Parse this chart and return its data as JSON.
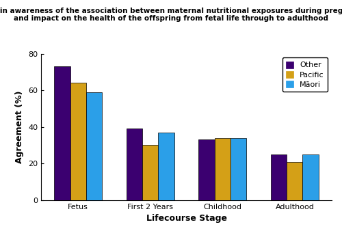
{
  "title_line1": "Trend in awareness of the association between maternal nutritional exposures during pregnancy",
  "title_line2": "and impact on the health of the offspring from fetal life through to adulthood",
  "xlabel": "Lifecourse Stage",
  "ylabel": "Agreement (%)",
  "categories": [
    "Fetus",
    "First 2 Years",
    "Childhood",
    "Adulthood"
  ],
  "series": {
    "Other": [
      73,
      39,
      33,
      25
    ],
    "Pacific": [
      64,
      30,
      34,
      21
    ],
    "Māori": [
      59,
      37,
      34,
      25
    ]
  },
  "colors": {
    "Other": "#3B0070",
    "Pacific": "#D4A017",
    "Māori": "#2B9FE8"
  },
  "ylim": [
    0,
    80
  ],
  "yticks": [
    0,
    20,
    40,
    60,
    80
  ],
  "bar_width": 0.22,
  "legend_loc": "upper right",
  "title_fontsize": 7.5,
  "axis_label_fontsize": 9,
  "tick_fontsize": 8,
  "legend_fontsize": 8,
  "background_color": "#ffffff",
  "edge_color": "black",
  "edge_width": 0.5
}
